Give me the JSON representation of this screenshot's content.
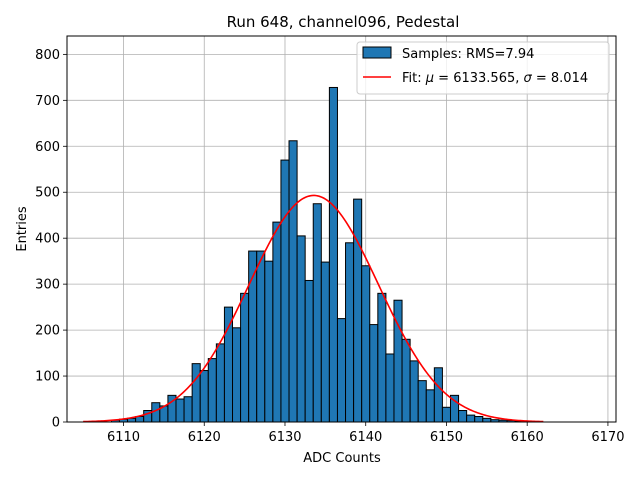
{
  "chart_data": {
    "type": "bar",
    "title": "Run 648, channel096, Pedestal",
    "xlabel": "ADC Counts",
    "ylabel": "Entries",
    "xlim": [
      6103,
      6171
    ],
    "ylim": [
      0,
      840
    ],
    "xticks": [
      6110,
      6120,
      6130,
      6140,
      6150,
      6160,
      6170
    ],
    "yticks": [
      0,
      100,
      200,
      300,
      400,
      500,
      600,
      700,
      800
    ],
    "grid": true,
    "legend_position": "top-right",
    "histogram": {
      "name": "Samples: RMS=7.94",
      "color": "#1f77b4",
      "bin_width": 1,
      "x": [
        6109,
        6110,
        6111,
        6112,
        6113,
        6114,
        6115,
        6116,
        6117,
        6118,
        6119,
        6120,
        6121,
        6122,
        6123,
        6124,
        6125,
        6126,
        6127,
        6128,
        6129,
        6130,
        6131,
        6132,
        6133,
        6134,
        6135,
        6136,
        6137,
        6138,
        6139,
        6140,
        6141,
        6142,
        6143,
        6144,
        6145,
        6146,
        6147,
        6148,
        6149,
        6150,
        6151,
        6152,
        6153,
        6154,
        6155,
        6156,
        6157,
        6158,
        6159,
        6160
      ],
      "values": [
        4,
        6,
        8,
        12,
        25,
        42,
        35,
        58,
        50,
        55,
        127,
        112,
        138,
        170,
        250,
        205,
        280,
        372,
        372,
        350,
        435,
        570,
        612,
        405,
        308,
        475,
        348,
        728,
        225,
        390,
        485,
        340,
        212,
        280,
        148,
        265,
        180,
        133,
        90,
        70,
        118,
        32,
        58,
        25,
        15,
        12,
        8,
        5,
        4,
        3,
        2,
        1
      ]
    },
    "fit": {
      "name": "Fit: $\\mu$ = 6133.565, $\\sigma$ = 8.014",
      "label_prefix": "Fit: ",
      "mu_symbol": "μ",
      "sigma_symbol": "σ",
      "mu": 6133.565,
      "sigma": 8.014,
      "amplitude": 493,
      "x_range": [
        6105,
        6162
      ],
      "color": "#ff0000",
      "mu_text": " = 6133.565, ",
      "sigma_text": " = 8.014"
    }
  }
}
